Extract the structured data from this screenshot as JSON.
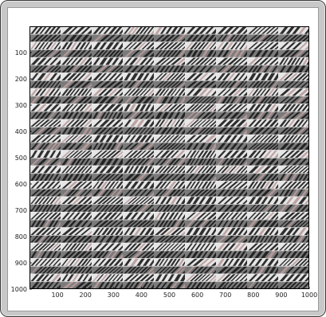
{
  "chart_data": {
    "type": "heatmap",
    "title": "",
    "xlabel": "",
    "ylabel": "",
    "xlim": [
      0,
      1000
    ],
    "ylim": [
      1000,
      0
    ],
    "y_inverted": true,
    "grid": false,
    "colormap": "grayscale",
    "x_ticks": [
      100,
      200,
      300,
      400,
      500,
      600,
      700,
      800,
      900,
      1000
    ],
    "x_tick_labels": [
      "100",
      "200",
      "300",
      "400",
      "500",
      "600",
      "700",
      "800",
      "900",
      "1000"
    ],
    "y_ticks": [
      100,
      200,
      300,
      400,
      500,
      600,
      700,
      800,
      900,
      1000
    ],
    "y_tick_labels": [
      "100",
      "200",
      "300",
      "400",
      "500",
      "600",
      "700",
      "800",
      "900",
      "1000"
    ],
    "pattern": {
      "description_shown": false,
      "block_columns": 9,
      "block_rows": 34,
      "colors": {
        "dark": "#1a1a1a",
        "light": "#e6e6e6",
        "mid": "#7a7a7a",
        "accent": "#b89a9a"
      }
    }
  }
}
